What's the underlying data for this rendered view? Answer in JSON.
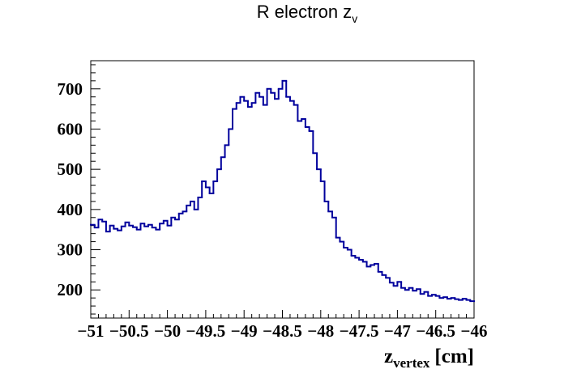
{
  "chart_data": {
    "type": "histogram",
    "title": "R electron z",
    "title_subscript": "v",
    "xlabel": "z",
    "xlabel_subscript": "vertex",
    "xlabel_unit": "[cm]",
    "xlim": [
      -51,
      -46
    ],
    "ylim": [
      130,
      770
    ],
    "x_ticks": [
      -51,
      -50.5,
      -50,
      -49.5,
      -49,
      -48.5,
      -48,
      -47.5,
      -47,
      -46.5,
      -46
    ],
    "x_tick_labels": [
      "−51",
      "−50.5",
      "−50",
      "−49.5",
      "−49",
      "−48.5",
      "−48",
      "−47.5",
      "−47",
      "−46.5",
      "−46"
    ],
    "y_ticks": [
      200,
      300,
      400,
      500,
      600,
      700
    ],
    "y_tick_labels": [
      "200",
      "300",
      "400",
      "500",
      "600",
      "700"
    ],
    "grid": false,
    "legend": "none",
    "line_color": "#00009c",
    "bin_width": 0.05,
    "bin_lo_edges": [
      -51.0,
      -50.95,
      -50.9,
      -50.85,
      -50.8,
      -50.75,
      -50.7,
      -50.65,
      -50.6,
      -50.55,
      -50.5,
      -50.45,
      -50.4,
      -50.35,
      -50.3,
      -50.25,
      -50.2,
      -50.15,
      -50.1,
      -50.05,
      -50.0,
      -49.95,
      -49.9,
      -49.85,
      -49.8,
      -49.75,
      -49.7,
      -49.65,
      -49.6,
      -49.55,
      -49.5,
      -49.45,
      -49.4,
      -49.35,
      -49.3,
      -49.25,
      -49.2,
      -49.15,
      -49.1,
      -49.05,
      -49.0,
      -48.95,
      -48.9,
      -48.85,
      -48.8,
      -48.75,
      -48.7,
      -48.65,
      -48.6,
      -48.55,
      -48.5,
      -48.45,
      -48.4,
      -48.35,
      -48.3,
      -48.25,
      -48.2,
      -48.15,
      -48.1,
      -48.05,
      -48.0,
      -47.95,
      -47.9,
      -47.85,
      -47.8,
      -47.75,
      -47.7,
      -47.65,
      -47.6,
      -47.55,
      -47.5,
      -47.45,
      -47.4,
      -47.35,
      -47.3,
      -47.25,
      -47.2,
      -47.15,
      -47.1,
      -47.05,
      -47.0,
      -46.95,
      -46.9,
      -46.85,
      -46.8,
      -46.75,
      -46.7,
      -46.65,
      -46.6,
      -46.55,
      -46.5,
      -46.45,
      -46.4,
      -46.35,
      -46.3,
      -46.25,
      -46.2,
      -46.15,
      -46.1,
      -46.05
    ],
    "values": [
      362,
      355,
      375,
      370,
      345,
      360,
      352,
      348,
      358,
      368,
      360,
      356,
      350,
      365,
      358,
      362,
      355,
      350,
      365,
      372,
      360,
      380,
      375,
      390,
      395,
      410,
      420,
      400,
      430,
      470,
      455,
      440,
      470,
      500,
      530,
      560,
      600,
      650,
      665,
      680,
      670,
      655,
      665,
      690,
      680,
      660,
      700,
      690,
      675,
      700,
      720,
      680,
      670,
      660,
      620,
      625,
      605,
      595,
      540,
      500,
      470,
      420,
      395,
      380,
      330,
      320,
      305,
      300,
      285,
      280,
      275,
      270,
      258,
      262,
      265,
      245,
      237,
      230,
      218,
      210,
      220,
      205,
      200,
      205,
      198,
      202,
      190,
      195,
      185,
      188,
      185,
      180,
      182,
      178,
      180,
      177,
      175,
      178,
      175,
      172
    ]
  }
}
